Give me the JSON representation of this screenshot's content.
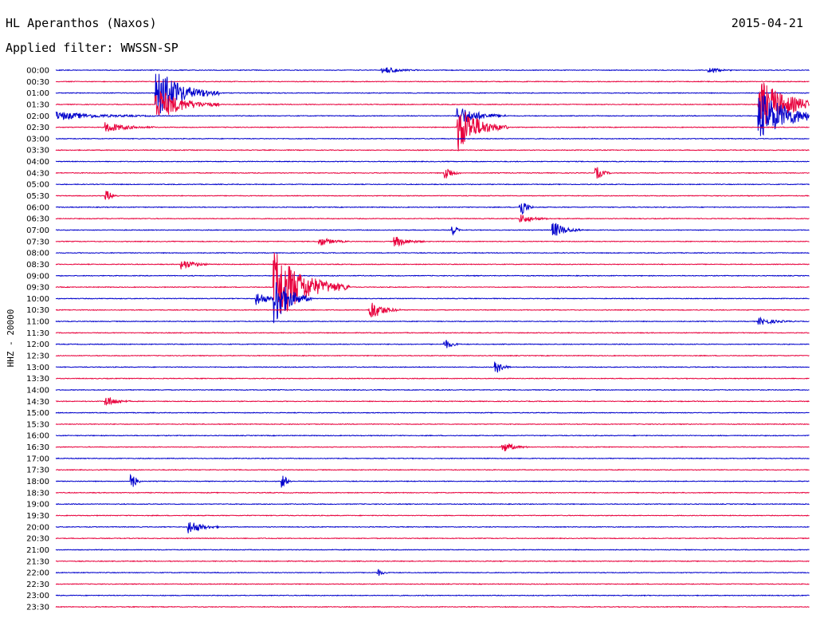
{
  "header": {
    "station": "HL Aperanthos (Naxos)",
    "date": "2015-04-21",
    "filter": "Applied filter: WWSSN-SP"
  },
  "chart_data": {
    "type": "line",
    "ylabel": "HHZ - 20000",
    "row_labels": [
      "00:00",
      "00:30",
      "01:00",
      "01:30",
      "02:00",
      "02:30",
      "03:00",
      "03:30",
      "04:00",
      "04:30",
      "05:00",
      "05:30",
      "06:00",
      "06:30",
      "07:00",
      "07:30",
      "08:00",
      "08:30",
      "09:00",
      "09:30",
      "10:00",
      "10:30",
      "11:00",
      "11:30",
      "12:00",
      "12:30",
      "13:00",
      "13:30",
      "14:00",
      "14:30",
      "15:00",
      "15:30",
      "16:00",
      "16:30",
      "17:00",
      "17:30",
      "18:00",
      "18:30",
      "19:00",
      "19:30",
      "20:00",
      "20:30",
      "21:00",
      "21:30",
      "22:00",
      "22:30",
      "23:00",
      "23:30"
    ],
    "trace_colors": [
      "#0000cc",
      "#e8003c"
    ],
    "events": [
      {
        "row": "00:00",
        "minute": 13,
        "amplitude": 4,
        "duration": 1.5
      },
      {
        "row": "00:00",
        "minute": 26,
        "amplitude": 3,
        "duration": 1
      },
      {
        "row": "01:00",
        "minute": 4,
        "amplitude": 30,
        "duration": 2.5
      },
      {
        "row": "01:30",
        "minute": 4,
        "amplitude": 20,
        "duration": 2.5
      },
      {
        "row": "01:30",
        "minute": 28,
        "amplitude": 30,
        "duration": 3
      },
      {
        "row": "02:00",
        "minute": 0,
        "amplitude": 5,
        "duration": 4
      },
      {
        "row": "02:00",
        "minute": 16,
        "amplitude": 12,
        "duration": 2
      },
      {
        "row": "02:00",
        "minute": 28,
        "amplitude": 30,
        "duration": 3
      },
      {
        "row": "02:30",
        "minute": 2,
        "amplitude": 6,
        "duration": 2
      },
      {
        "row": "02:30",
        "minute": 16,
        "amplitude": 30,
        "duration": 2
      },
      {
        "row": "04:30",
        "minute": 15.5,
        "amplitude": 8,
        "duration": 0.6
      },
      {
        "row": "04:30",
        "minute": 21.5,
        "amplitude": 7,
        "duration": 0.6
      },
      {
        "row": "05:30",
        "minute": 2,
        "amplitude": 6,
        "duration": 0.5
      },
      {
        "row": "06:00",
        "minute": 18.5,
        "amplitude": 10,
        "duration": 0.5
      },
      {
        "row": "06:30",
        "minute": 18.5,
        "amplitude": 5,
        "duration": 1.2
      },
      {
        "row": "07:00",
        "minute": 15.8,
        "amplitude": 6,
        "duration": 0.3
      },
      {
        "row": "07:00",
        "minute": 19.8,
        "amplitude": 9,
        "duration": 1.2
      },
      {
        "row": "07:30",
        "minute": 10.5,
        "amplitude": 5,
        "duration": 1.2
      },
      {
        "row": "07:30",
        "minute": 13.5,
        "amplitude": 6,
        "duration": 1.2
      },
      {
        "row": "08:30",
        "minute": 5,
        "amplitude": 6,
        "duration": 1.2
      },
      {
        "row": "09:30",
        "minute": 8.7,
        "amplitude": 45,
        "duration": 3
      },
      {
        "row": "10:00",
        "minute": 8,
        "amplitude": 8,
        "duration": 1
      },
      {
        "row": "10:00",
        "minute": 8.7,
        "amplitude": 30,
        "duration": 1.5
      },
      {
        "row": "10:30",
        "minute": 12.5,
        "amplitude": 12,
        "duration": 1.2
      },
      {
        "row": "11:00",
        "minute": 28,
        "amplitude": 4,
        "duration": 1.5
      },
      {
        "row": "12:00",
        "minute": 15.5,
        "amplitude": 5,
        "duration": 0.6
      },
      {
        "row": "13:00",
        "minute": 17.5,
        "amplitude": 7,
        "duration": 0.6
      },
      {
        "row": "14:30",
        "minute": 2,
        "amplitude": 6,
        "duration": 1
      },
      {
        "row": "16:30",
        "minute": 17.8,
        "amplitude": 6,
        "duration": 1
      },
      {
        "row": "18:00",
        "minute": 3,
        "amplitude": 9,
        "duration": 0.4
      },
      {
        "row": "18:00",
        "minute": 9,
        "amplitude": 8,
        "duration": 0.4
      },
      {
        "row": "20:00",
        "minute": 5.3,
        "amplitude": 8,
        "duration": 1.2
      },
      {
        "row": "22:00",
        "minute": 12.8,
        "amplitude": 4,
        "duration": 0.4
      }
    ]
  }
}
